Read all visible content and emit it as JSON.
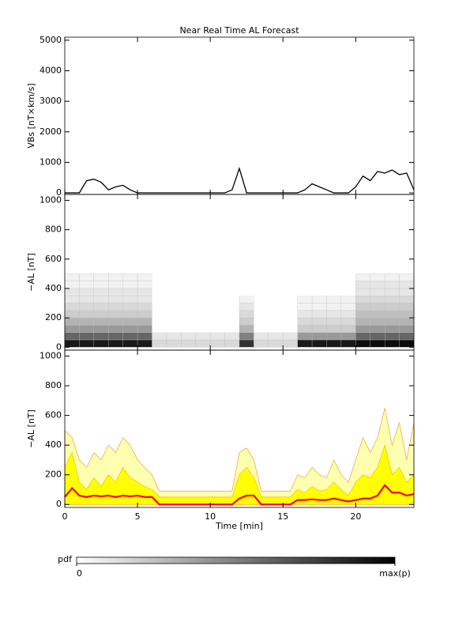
{
  "chart_data": [
    {
      "type": "line",
      "title": "Near Real Time AL Forecast",
      "ylabel": "VBs [nT×km/s]",
      "x": [
        0,
        0.5,
        1,
        1.5,
        2,
        2.5,
        3,
        3.5,
        4,
        4.5,
        5,
        5.5,
        6,
        6.5,
        7,
        7.5,
        8,
        8.5,
        9,
        9.5,
        10,
        10.5,
        11,
        11.5,
        12,
        12.5,
        13,
        13.5,
        14,
        14.5,
        15,
        15.5,
        16,
        16.5,
        17,
        17.5,
        18,
        18.5,
        19,
        19.5,
        20,
        20.5,
        21,
        21.5,
        22,
        22.5,
        23,
        23.5,
        24
      ],
      "values": [
        0,
        0,
        0,
        400,
        450,
        350,
        100,
        200,
        250,
        100,
        0,
        0,
        0,
        0,
        0,
        0,
        0,
        0,
        0,
        0,
        0,
        0,
        0,
        100,
        800,
        0,
        0,
        0,
        0,
        0,
        0,
        0,
        0,
        100,
        300,
        200,
        100,
        0,
        0,
        0,
        200,
        550,
        400,
        700,
        650,
        750,
        600,
        650,
        100
      ],
      "color": "#000000",
      "xlim": [
        0,
        24
      ],
      "xticks": [
        0,
        5,
        10,
        15,
        20
      ],
      "ylim": [
        -50,
        5100
      ],
      "yticks": [
        0,
        1000,
        2000,
        3000,
        4000,
        5000
      ]
    },
    {
      "type": "heatmap",
      "ylabel": "−AL [nT]",
      "x_bins": [
        0,
        1,
        2,
        3,
        4,
        5,
        6,
        7,
        8,
        9,
        10,
        11,
        12,
        13,
        14,
        15,
        16,
        17,
        18,
        19,
        20,
        21,
        22,
        23,
        24
      ],
      "y_bins": [
        0,
        50,
        100,
        150,
        200,
        250,
        300,
        350,
        400,
        450,
        500
      ],
      "pdf": [
        [
          0.9,
          0.6,
          0.4,
          0.3,
          0.2,
          0.15,
          0.1,
          0.1,
          0.05,
          0.05
        ],
        [
          0.9,
          0.6,
          0.4,
          0.3,
          0.2,
          0.15,
          0.1,
          0.1,
          0.05,
          0.05
        ],
        [
          0.9,
          0.6,
          0.4,
          0.3,
          0.2,
          0.15,
          0.1,
          0.1,
          0.05,
          0.05
        ],
        [
          0.9,
          0.6,
          0.4,
          0.3,
          0.2,
          0.15,
          0.1,
          0.1,
          0.05,
          0.05
        ],
        [
          0.9,
          0.6,
          0.4,
          0.3,
          0.2,
          0.15,
          0.1,
          0.1,
          0.05,
          0.05
        ],
        [
          0.9,
          0.6,
          0.4,
          0.3,
          0.2,
          0.15,
          0.1,
          0.1,
          0.05,
          0.05
        ],
        [
          0.15,
          0.1,
          0,
          0,
          0,
          0,
          0,
          0,
          0,
          0
        ],
        [
          0.15,
          0.1,
          0,
          0,
          0,
          0,
          0,
          0,
          0,
          0
        ],
        [
          0.15,
          0.1,
          0,
          0,
          0,
          0,
          0,
          0,
          0,
          0
        ],
        [
          0.15,
          0.1,
          0,
          0,
          0,
          0,
          0,
          0,
          0,
          0
        ],
        [
          0.15,
          0.1,
          0,
          0,
          0,
          0,
          0,
          0,
          0,
          0
        ],
        [
          0.15,
          0.1,
          0,
          0,
          0,
          0,
          0,
          0,
          0,
          0
        ],
        [
          0.8,
          0.5,
          0.3,
          0.2,
          0.15,
          0.1,
          0.05,
          0,
          0,
          0
        ],
        [
          0.15,
          0.1,
          0,
          0,
          0,
          0,
          0,
          0,
          0,
          0
        ],
        [
          0.15,
          0.1,
          0,
          0,
          0,
          0,
          0,
          0,
          0,
          0
        ],
        [
          0.15,
          0.1,
          0,
          0,
          0,
          0,
          0,
          0,
          0,
          0
        ],
        [
          0.9,
          0.4,
          0.2,
          0.15,
          0.1,
          0.05,
          0.05,
          0,
          0,
          0
        ],
        [
          0.9,
          0.4,
          0.2,
          0.15,
          0.1,
          0.05,
          0.05,
          0,
          0,
          0
        ],
        [
          0.9,
          0.4,
          0.2,
          0.15,
          0.1,
          0.05,
          0.05,
          0,
          0,
          0
        ],
        [
          0.9,
          0.4,
          0.2,
          0.15,
          0.1,
          0.05,
          0.05,
          0,
          0,
          0
        ],
        [
          0.95,
          0.6,
          0.4,
          0.3,
          0.25,
          0.2,
          0.15,
          0.1,
          0.1,
          0.05
        ],
        [
          0.95,
          0.6,
          0.4,
          0.3,
          0.25,
          0.2,
          0.15,
          0.1,
          0.1,
          0.05
        ],
        [
          0.95,
          0.6,
          0.4,
          0.3,
          0.25,
          0.2,
          0.15,
          0.1,
          0.1,
          0.05
        ],
        [
          0.95,
          0.6,
          0.4,
          0.3,
          0.25,
          0.2,
          0.15,
          0.1,
          0.1,
          0.05
        ]
      ],
      "xlim": [
        0,
        24
      ],
      "xticks": [
        0,
        5,
        10,
        15,
        20
      ],
      "ylim": [
        -20,
        1040
      ],
      "yticks": [
        0,
        200,
        400,
        600,
        800,
        1000
      ]
    },
    {
      "type": "band",
      "ylabel": "−AL [nT]",
      "xlabel": "Time [min]",
      "x": [
        0,
        0.5,
        1,
        1.5,
        2,
        2.5,
        3,
        3.5,
        4,
        4.5,
        5,
        5.5,
        6,
        6.5,
        7,
        7.5,
        8,
        8.5,
        9,
        9.5,
        10,
        10.5,
        11,
        11.5,
        12,
        12.5,
        13,
        13.5,
        14,
        14.5,
        15,
        15.5,
        16,
        16.5,
        17,
        17.5,
        18,
        18.5,
        19,
        19.5,
        20,
        20.5,
        21,
        21.5,
        22,
        22.5,
        23,
        23.5,
        24
      ],
      "series": [
        {
          "style": "area",
          "color": "#f0a030",
          "fill": "#ffffb0",
          "values": [
            500,
            450,
            300,
            250,
            350,
            300,
            400,
            350,
            450,
            400,
            300,
            250,
            200,
            90,
            90,
            90,
            90,
            90,
            90,
            90,
            90,
            90,
            90,
            90,
            350,
            380,
            300,
            90,
            90,
            90,
            90,
            90,
            200,
            180,
            250,
            200,
            180,
            300,
            200,
            150,
            300,
            450,
            350,
            450,
            650,
            400,
            550,
            300,
            550
          ]
        },
        {
          "style": "area",
          "color": "#f0c000",
          "fill": "#ffff00",
          "values": [
            250,
            350,
            150,
            100,
            180,
            120,
            200,
            150,
            250,
            180,
            150,
            120,
            100,
            50,
            50,
            50,
            50,
            50,
            50,
            50,
            50,
            50,
            50,
            50,
            200,
            250,
            180,
            50,
            50,
            50,
            50,
            50,
            100,
            80,
            120,
            90,
            100,
            150,
            100,
            60,
            150,
            200,
            180,
            250,
            400,
            200,
            250,
            150,
            200
          ]
        },
        {
          "style": "line",
          "color": "#ff0000",
          "values": [
            50,
            110,
            60,
            50,
            60,
            55,
            60,
            50,
            60,
            55,
            60,
            50,
            50,
            0,
            0,
            0,
            0,
            0,
            0,
            0,
            0,
            0,
            0,
            0,
            40,
            60,
            60,
            0,
            0,
            0,
            0,
            0,
            30,
            30,
            35,
            30,
            30,
            40,
            30,
            20,
            30,
            40,
            40,
            60,
            130,
            80,
            80,
            60,
            70
          ]
        }
      ],
      "xlim": [
        0,
        24
      ],
      "xticks": [
        0,
        5,
        10,
        15,
        20
      ],
      "ylim": [
        -20,
        1040
      ],
      "yticks": [
        0,
        200,
        400,
        600,
        800,
        1000
      ]
    },
    {
      "type": "colorbar",
      "label": "pdf",
      "lim": [
        0,
        1
      ],
      "ticks": [
        0,
        {
          "value": 1,
          "label": "max(p)"
        }
      ]
    }
  ]
}
